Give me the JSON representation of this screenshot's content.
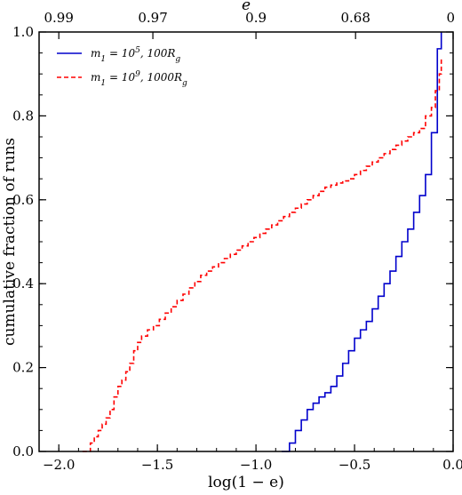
{
  "chart_data": {
    "type": "line",
    "step": true,
    "xlabel": "log(1 − e)",
    "ylabel": "cumulative fraction of runs",
    "top_xlabel": "e",
    "xlim": [
      -2.1,
      0.0
    ],
    "ylim": [
      0.0,
      1.0
    ],
    "x_ticks": [
      -2.0,
      -1.5,
      -1.0,
      -0.5,
      0.0
    ],
    "x_tick_labels": [
      "−2.0",
      "−1.5",
      "−1.0",
      "−0.5",
      "0.0"
    ],
    "y_ticks": [
      0.0,
      0.2,
      0.4,
      0.6,
      0.8,
      1.0
    ],
    "y_tick_labels": [
      "0.0",
      "0.2",
      "0.4",
      "0.6",
      "0.8",
      "1.0"
    ],
    "top_ticks": [
      0.99,
      0.97,
      0.9,
      0.68,
      0
    ],
    "top_tick_labels": [
      "0.99",
      "0.97",
      "0.9",
      "0.68",
      "0"
    ],
    "grid": false,
    "legend_placement": "top-left",
    "series": [
      {
        "name": "m1 = 10^5, 100Rg",
        "label_main": "m",
        "label_sub": "1",
        "label_rest": " = 10",
        "label_sup": "5",
        "label_tail": ", 100R",
        "label_tail_sub": "g",
        "color": "#0000cc",
        "dash": "solid",
        "x": [
          -0.87,
          -0.83,
          -0.8,
          -0.77,
          -0.74,
          -0.71,
          -0.68,
          -0.65,
          -0.62,
          -0.59,
          -0.56,
          -0.53,
          -0.5,
          -0.47,
          -0.44,
          -0.41,
          -0.38,
          -0.35,
          -0.32,
          -0.29,
          -0.26,
          -0.23,
          -0.2,
          -0.17,
          -0.14,
          -0.11,
          -0.08,
          -0.06
        ],
        "y": [
          0.0,
          0.02,
          0.05,
          0.075,
          0.1,
          0.115,
          0.13,
          0.14,
          0.155,
          0.18,
          0.21,
          0.24,
          0.27,
          0.29,
          0.31,
          0.34,
          0.37,
          0.4,
          0.43,
          0.465,
          0.5,
          0.53,
          0.57,
          0.61,
          0.66,
          0.76,
          0.96,
          1.0
        ]
      },
      {
        "name": "m1 = 10^9, 1000Rg",
        "label_main": "m",
        "label_sub": "1",
        "label_rest": " = 10",
        "label_sup": "9",
        "label_tail": ", 1000R",
        "label_tail_sub": "g",
        "color": "#ff0000",
        "dash": "dashed",
        "x": [
          -1.88,
          -1.84,
          -1.82,
          -1.8,
          -1.78,
          -1.76,
          -1.74,
          -1.72,
          -1.7,
          -1.68,
          -1.66,
          -1.64,
          -1.62,
          -1.6,
          -1.58,
          -1.55,
          -1.52,
          -1.49,
          -1.46,
          -1.43,
          -1.4,
          -1.37,
          -1.34,
          -1.31,
          -1.28,
          -1.25,
          -1.22,
          -1.19,
          -1.16,
          -1.13,
          -1.1,
          -1.07,
          -1.04,
          -1.01,
          -0.98,
          -0.95,
          -0.92,
          -0.89,
          -0.86,
          -0.83,
          -0.8,
          -0.77,
          -0.74,
          -0.71,
          -0.68,
          -0.65,
          -0.62,
          -0.59,
          -0.56,
          -0.53,
          -0.5,
          -0.47,
          -0.44,
          -0.41,
          -0.38,
          -0.35,
          -0.32,
          -0.29,
          -0.26,
          -0.23,
          -0.2,
          -0.17,
          -0.14,
          -0.11,
          -0.09,
          -0.07,
          -0.06
        ],
        "y": [
          0.0,
          0.02,
          0.035,
          0.05,
          0.065,
          0.08,
          0.1,
          0.13,
          0.155,
          0.17,
          0.19,
          0.21,
          0.24,
          0.26,
          0.275,
          0.29,
          0.3,
          0.315,
          0.33,
          0.345,
          0.36,
          0.375,
          0.39,
          0.405,
          0.42,
          0.43,
          0.44,
          0.45,
          0.46,
          0.47,
          0.48,
          0.49,
          0.5,
          0.51,
          0.52,
          0.53,
          0.54,
          0.55,
          0.56,
          0.57,
          0.58,
          0.59,
          0.6,
          0.61,
          0.62,
          0.63,
          0.635,
          0.64,
          0.645,
          0.65,
          0.66,
          0.67,
          0.68,
          0.69,
          0.7,
          0.71,
          0.72,
          0.73,
          0.74,
          0.75,
          0.76,
          0.77,
          0.8,
          0.82,
          0.86,
          0.9,
          0.94
        ]
      }
    ]
  }
}
